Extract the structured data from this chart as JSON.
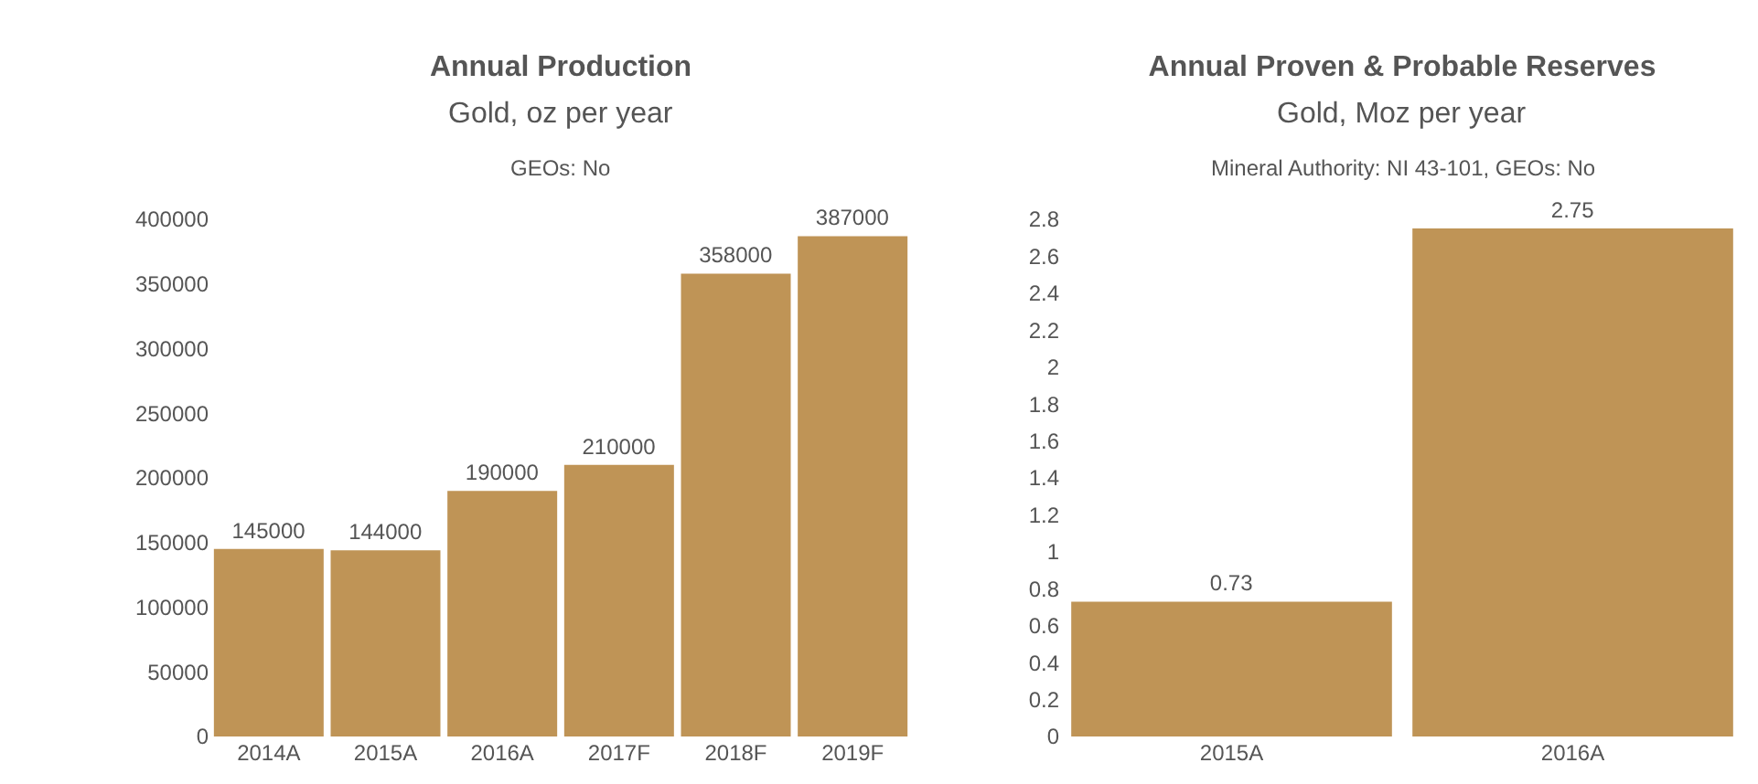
{
  "chart_data": [
    {
      "type": "bar",
      "title": "Annual Production",
      "subtitle": "Gold, oz per year",
      "annotations": [
        "GEOs: No"
      ],
      "categories": [
        "2014A",
        "2015A",
        "2016A",
        "2017F",
        "2018F",
        "2019F"
      ],
      "values": [
        145000,
        144000,
        190000,
        210000,
        358000,
        387000
      ],
      "color": "#bf9456",
      "ylim": [
        0,
        400000
      ],
      "yticks": [
        0,
        50000,
        100000,
        150000,
        200000,
        250000,
        300000,
        350000,
        400000
      ],
      "data_labels": true,
      "grid": false
    },
    {
      "type": "bar",
      "title": "Annual Proven & Probable Reserves",
      "subtitle": "Gold, Moz per year",
      "annotations": [
        "Mineral Authority: NI 43-101, GEOs: No"
      ],
      "categories": [
        "2015A",
        "2016A"
      ],
      "values": [
        0.73,
        2.75
      ],
      "color": "#bf9456",
      "ylim": [
        0,
        2.8
      ],
      "yticks": [
        0,
        0.2,
        0.4,
        0.6,
        0.8,
        1,
        1.2,
        1.4,
        1.6,
        1.8,
        2,
        2.2,
        2.4,
        2.6,
        2.8
      ],
      "data_labels": true,
      "grid": false
    }
  ]
}
